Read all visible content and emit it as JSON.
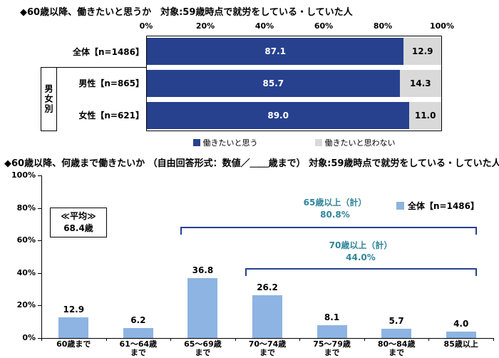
{
  "page": {
    "background": "#ffffff"
  },
  "chart_data": [
    {
      "type": "bar",
      "orientation": "horizontal",
      "stacked": true,
      "title": "◆60歳以降、働きたいと思うか　対象:59歳時点で就労をしている・していた人",
      "categories": [
        "全体【n=1486】",
        "男性【n=865】",
        "女性【n=621】"
      ],
      "series": [
        {
          "name": "働きたいと思う",
          "color": "#27418F",
          "values": [
            87.1,
            85.7,
            89.0
          ]
        },
        {
          "name": "働きたいと思わない",
          "color": "#D9D9D9",
          "values": [
            12.9,
            14.3,
            11.0
          ]
        }
      ],
      "x_ticks": [
        "0%",
        "20%",
        "40%",
        "60%",
        "80%",
        "100%"
      ],
      "xlim": [
        0,
        100
      ],
      "row_group_label": "男女別",
      "legend_position": "bottom",
      "grid": false
    },
    {
      "type": "bar",
      "orientation": "vertical",
      "title": "◆60歳以降、何歳まで働きたいか （自由回答形式：数値／＿＿歳まで） 対象:59歳時点で就労をしている・していた人",
      "categories": [
        "60歳まで",
        "61～64歳まで",
        "65～69歳まで",
        "70～74歳まで",
        "75～79歳まで",
        "80～84歳まで",
        "85歳以上"
      ],
      "category_lines": [
        [
          "60歳まで"
        ],
        [
          "61～64歳",
          "まで"
        ],
        [
          "65～69歳",
          "まで"
        ],
        [
          "70～74歳",
          "まで"
        ],
        [
          "75～79歳",
          "まで"
        ],
        [
          "80～84歳",
          "まで"
        ],
        [
          "85歳以上"
        ]
      ],
      "values": [
        12.9,
        6.2,
        36.8,
        26.2,
        8.1,
        5.7,
        4.0
      ],
      "bar_color": "#8DB4E2",
      "y_ticks": [
        "100%",
        "80%",
        "60%",
        "40%",
        "20%",
        "0%"
      ],
      "ylim": [
        0,
        100
      ],
      "legend": {
        "label": "全体【n=1486】",
        "color": "#8DB4E2"
      },
      "average_box": {
        "line1": "≪平均≫",
        "line2": "68.4歳"
      },
      "annotations": [
        {
          "label": "65歳以上（計）",
          "value": "80.8%",
          "color": "#31849B",
          "span": [
            "65～69歳まで",
            "85歳以上"
          ]
        },
        {
          "label": "70歳以上（計）",
          "value": "44.0%",
          "color": "#31849B",
          "span": [
            "70～74歳まで",
            "85歳以上"
          ]
        }
      ],
      "bracket_color": "#27418F",
      "grid": false
    }
  ]
}
